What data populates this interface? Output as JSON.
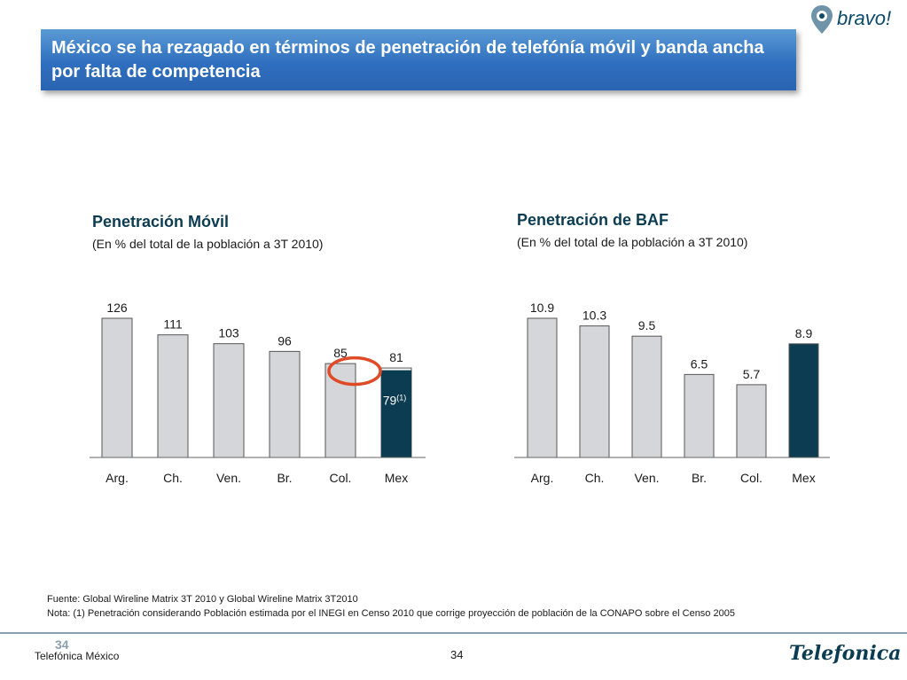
{
  "header": {
    "title": "México se ha rezagado en términos de penetración de telefónía móvil y banda ancha por falta de competencia",
    "logo_text": "bravo!"
  },
  "chart_data": [
    {
      "type": "bar",
      "title": "Penetración Móvil",
      "subtitle": "(En % del total de la población a 3T 2010)",
      "categories": [
        "Arg.",
        "Ch.",
        "Ven.",
        "Br.",
        "Col.",
        "Mex"
      ],
      "values": [
        126,
        111,
        103,
        96,
        85,
        81
      ],
      "value_labels": [
        "126",
        "111",
        "103",
        "96",
        "85",
        "81"
      ],
      "highlight_category": "Mex",
      "inner_value": 79,
      "inner_value_label": "79",
      "inner_value_note": "(1)",
      "ylim": [
        0,
        126
      ],
      "colors": {
        "bar": "#d4d6d9",
        "highlight": "#0b3c52",
        "circle": "#e04a26"
      }
    },
    {
      "type": "bar",
      "title": "Penetración de BAF",
      "subtitle": "(En % del total de la población a 3T 2010)",
      "categories": [
        "Arg.",
        "Ch.",
        "Ven.",
        "Br.",
        "Col.",
        "Mex"
      ],
      "values": [
        10.9,
        10.3,
        9.5,
        6.5,
        5.7,
        8.9
      ],
      "value_labels": [
        "10.9",
        "10.3",
        "9.5",
        "6.5",
        "5.7",
        "8.9"
      ],
      "highlight_category": "Mex",
      "ylim": [
        0,
        10.9
      ],
      "colors": {
        "bar": "#d4d6d9",
        "highlight": "#0b3c52"
      }
    }
  ],
  "notes": {
    "source": "Fuente:  Global Wireline Matrix 3T 2010 y Global Wireline Matrix 3T2010",
    "note": "Nota: (1) Penetración considerando Población estimada por el INEGI en Censo 2010 que corrige proyección de población de la CONAPO sobre el Censo 2005"
  },
  "footer": {
    "company": "Telefónica México",
    "page_number": "34",
    "page_ghost": "34",
    "brand": "Telefonica"
  }
}
